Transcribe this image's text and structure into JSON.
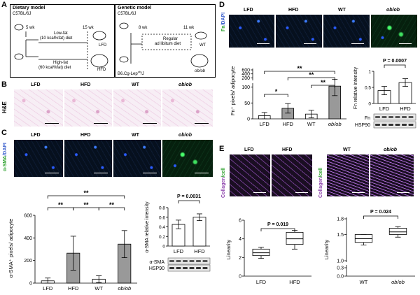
{
  "panels": {
    "A": {
      "label": "A",
      "left_box": {
        "title": "Dietary model",
        "strain": "C57BL/6J",
        "wk5": "5 wk",
        "wk15": "15 wk",
        "lfd_diet": "Low-fat",
        "lfd_diet2": "(10 kcal%fat) diet",
        "hfd_diet": "High-fat",
        "hfd_diet2": "(60 kcal%fat) diet",
        "lfd": "LFD",
        "hfd": "HFD"
      },
      "right_box": {
        "title": "Genetic model",
        "strain": "C57BL/6J",
        "wk8": "8 wk",
        "wk11": "11 wk",
        "diet": "Regular",
        "diet2": "ad libitum diet",
        "strain2": "B6.Cg-Lep",
        "strain2_sup": "ob",
        "strain2_end": "/J",
        "wt": "WT",
        "obob": "ob/ob"
      }
    },
    "B": {
      "label": "B",
      "side": "H&E",
      "groups": [
        "LFD",
        "HFD",
        "WT",
        "ob/ob"
      ]
    },
    "C": {
      "label": "C",
      "side": "α-SMA/DAPI",
      "side_green": "α-SMA",
      "side_blue": "/DAPI",
      "groups": [
        "LFD",
        "HFD",
        "WT",
        "ob/ob"
      ],
      "bar_ylabel": "α-SMA⁺ pixels/ adipocyte",
      "sig": [
        "**",
        "**",
        "**",
        "**"
      ],
      "wb_p": "P = 0.0031",
      "wb_ylabel": "α-SMA relative intensity",
      "wb_groups": [
        "LFD",
        "HFD"
      ],
      "blot1": "α-SMA",
      "blot2": "HSP90"
    },
    "D": {
      "label": "D",
      "side_green": "Fn",
      "side_blue": "/DAPI",
      "groups": [
        "LFD",
        "HFD",
        "WT",
        "ob/ob"
      ],
      "bar_ylabel": "Fn⁺ pixels/ adipocyte",
      "sig": [
        "**",
        "**",
        "**",
        "*"
      ],
      "wb_p": "P = 0.0007",
      "wb_ylabel": "Fn relative intensity",
      "wb_groups": [
        "LFD",
        "HFD"
      ],
      "blot1": "Fn",
      "blot2": "HSP90"
    },
    "E": {
      "label": "E",
      "side_purple": "Collagen",
      "side_green": "/cell",
      "groups_left": [
        "LFD",
        "HFD"
      ],
      "groups_right": [
        "WT",
        "ob/ob"
      ],
      "ylabel": "Linearity",
      "p_left": "P = 0.019",
      "p_right": "P = 0.024"
    }
  },
  "chart_data": [
    {
      "id": "C-bar",
      "type": "bar",
      "categories": [
        "LFD",
        "HFD",
        "WT",
        "ob/ob"
      ],
      "values": [
        20,
        265,
        35,
        345
      ],
      "errors": [
        25,
        150,
        30,
        120
      ],
      "ylim": [
        0,
        600
      ],
      "yticks": [
        0,
        200,
        400,
        600
      ],
      "ylabel": "α-SMA⁺ pixels/ adipocyte",
      "colors": [
        "#ffffff",
        "#999999",
        "#ffffff",
        "#999999"
      ]
    },
    {
      "id": "C-wb",
      "type": "bar",
      "categories": [
        "LFD",
        "HFD"
      ],
      "values": [
        0.45,
        0.6
      ],
      "errors": [
        0.09,
        0.07
      ],
      "ylim": [
        0,
        0.8
      ],
      "yticks": [
        0.0,
        0.2,
        0.4,
        0.6,
        0.8
      ],
      "ylabel": "α-SMA relative intensity",
      "colors": [
        "#ffffff",
        "#ffffff"
      ]
    },
    {
      "id": "D-bar",
      "type": "bar",
      "categories": [
        "LFD",
        "HFD",
        "WT",
        "ob/ob"
      ],
      "values": [
        10,
        33,
        15,
        103
      ],
      "errors": [
        10,
        15,
        12,
        30
      ],
      "ylim": [
        0,
        600
      ],
      "yticks_upper": [
        200,
        400,
        600
      ],
      "yticks_lower": [
        0,
        50,
        100
      ],
      "ylabel": "Fn⁺ pixels/ adipocyte",
      "colors": [
        "#ffffff",
        "#999999",
        "#ffffff",
        "#999999"
      ]
    },
    {
      "id": "D-wb",
      "type": "bar",
      "categories": [
        "LFD",
        "HFD"
      ],
      "values": [
        0.4,
        0.65
      ],
      "errors": [
        0.13,
        0.12
      ],
      "ylim": [
        0,
        1.0
      ],
      "yticks": [
        0.0,
        0.5,
        1.0
      ],
      "ylabel": "Fn relative intensity",
      "colors": [
        "#ffffff",
        "#ffffff"
      ]
    },
    {
      "id": "E-left",
      "type": "box",
      "categories": [
        "LFD",
        "HFD"
      ],
      "boxes": [
        {
          "min": 1.9,
          "q1": 2.2,
          "median": 2.5,
          "q3": 2.9,
          "max": 3.1
        },
        {
          "min": 2.9,
          "q1": 3.4,
          "median": 4.0,
          "q3": 4.7,
          "max": 4.9
        }
      ],
      "ylim": [
        0,
        6
      ],
      "yticks": [
        0,
        2,
        4,
        6
      ],
      "ylabel": "Linearity"
    },
    {
      "id": "E-right",
      "type": "box",
      "categories": [
        "WT",
        "ob/ob"
      ],
      "boxes": [
        {
          "min": 1.3,
          "q1": 1.35,
          "median": 1.42,
          "q3": 1.5,
          "max": 1.5
        },
        {
          "min": 1.45,
          "q1": 1.5,
          "median": 1.55,
          "q3": 1.62,
          "max": 1.65
        }
      ],
      "ylim_upper": [
        1.0,
        1.8
      ],
      "yticks_upper": [
        1.0,
        1.5,
        1.8
      ],
      "yticks_lower": [
        0.0,
        0.3
      ],
      "ylabel": "Linearity"
    }
  ]
}
